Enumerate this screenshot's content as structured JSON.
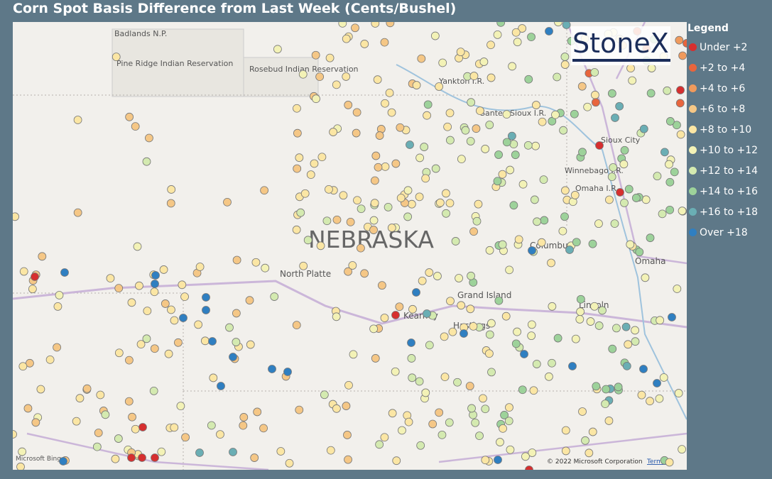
{
  "header": {
    "title": "Corn Spot Basis Difference from Last Week (Cents/Bushel)"
  },
  "legend": {
    "title": "Legend",
    "items": [
      {
        "label": "Under +2",
        "color": "#d62f2f"
      },
      {
        "label": "+2 to +4",
        "color": "#e8653d"
      },
      {
        "label": "+4 to +6",
        "color": "#f09a5c"
      },
      {
        "label": "+6 to +8",
        "color": "#f5c786"
      },
      {
        "label": "+8 to +10",
        "color": "#fbe6a4"
      },
      {
        "label": "+10 to +12",
        "color": "#f3f2b6"
      },
      {
        "label": "+12 to +14",
        "color": "#d4eab0"
      },
      {
        "label": "+14 to +16",
        "color": "#9dd29a"
      },
      {
        "label": "+16 to +18",
        "color": "#6aaeb4"
      },
      {
        "label": "Over +18",
        "color": "#2f7fc1"
      }
    ]
  },
  "map": {
    "labels": {
      "badlands": "Badlands N.P.",
      "pine_ridge": "Pine Ridge Indian Reservation",
      "rosebud": "Rosebud Indian Reservation",
      "yankton": "Yankton I.R.",
      "santee": "Santee Sioux I.R.",
      "sioux_city": "Sioux City",
      "winnebago": "Winnebago I.R.",
      "omaha_ir": "Omaha I.R.",
      "state": "NEBRASKA",
      "columbus": "Columbus",
      "omaha": "Omaha",
      "north_platte": "North Platte",
      "grand_island": "Grand Island",
      "kearney": "Kearney",
      "hastings": "Hastings",
      "lincoln": "Lincoln"
    },
    "logo": "StoneX",
    "copyright": "© 2022 Microsoft Corporation",
    "terms": "Terms",
    "provider": "Microsoft Bing"
  }
}
